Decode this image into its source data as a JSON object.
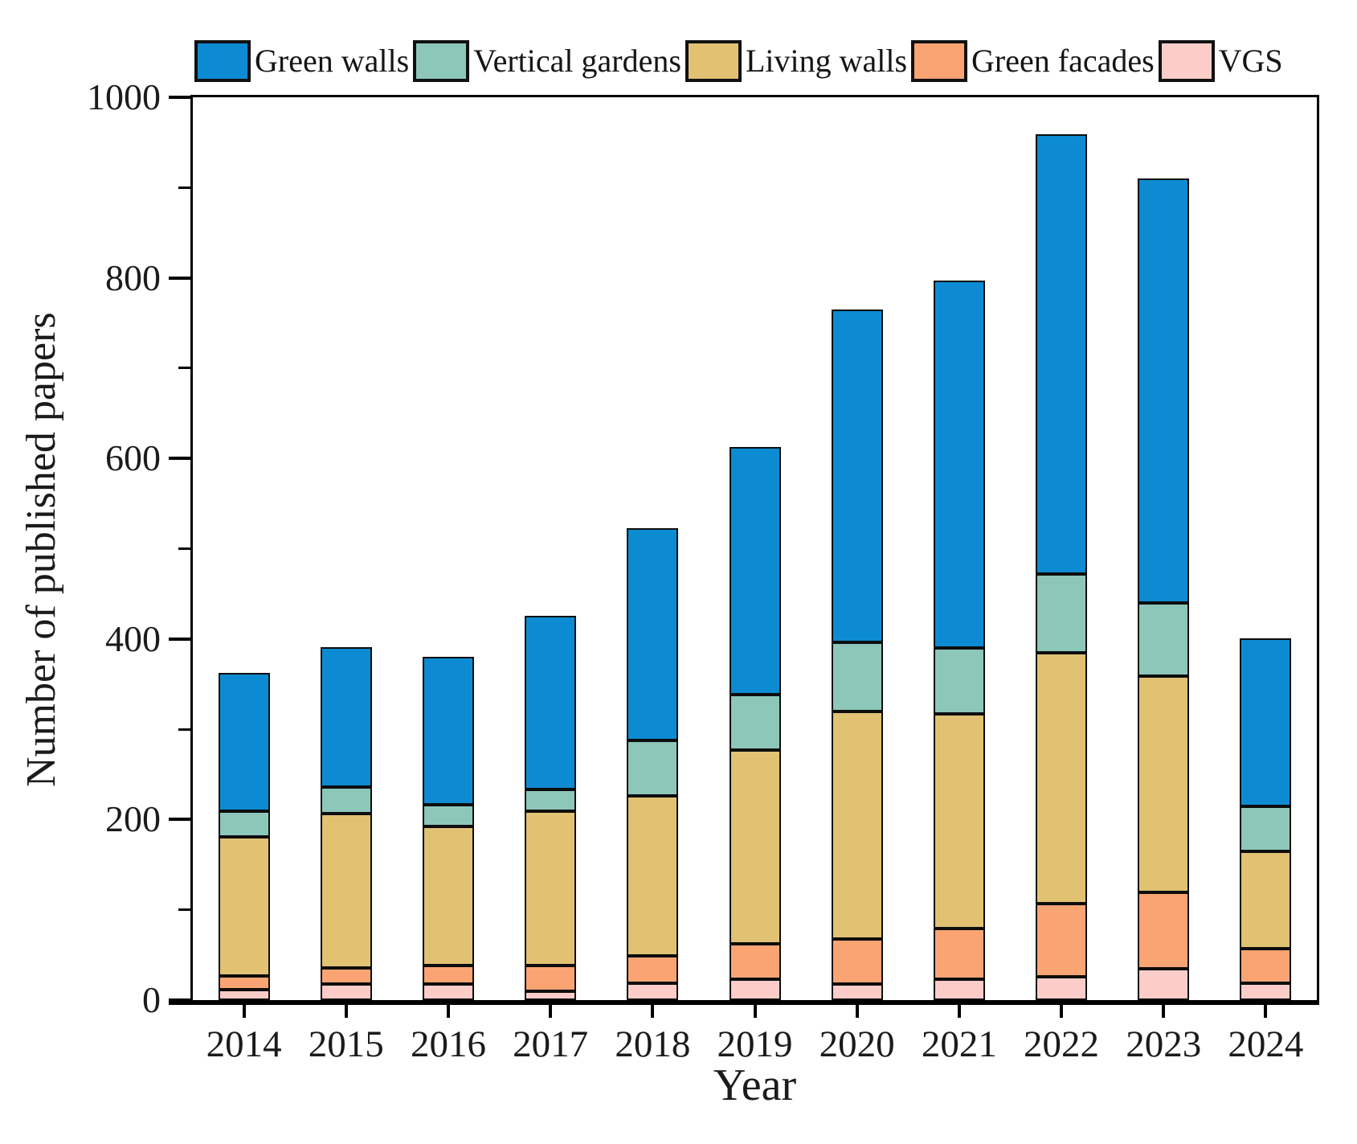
{
  "chart_data": {
    "type": "bar",
    "stacked": true,
    "title": "",
    "xlabel": "Year",
    "ylabel": "Number of published papers",
    "legend_position": "top",
    "grid": false,
    "categories": [
      "2014",
      "2015",
      "2016",
      "2017",
      "2018",
      "2019",
      "2020",
      "2021",
      "2022",
      "2023",
      "2024"
    ],
    "series": [
      {
        "name": "Green walls",
        "color": "#0d8bd2",
        "values": [
          153,
          155,
          164,
          193,
          235,
          275,
          369,
          407,
          487,
          470,
          186
        ]
      },
      {
        "name": "Vertical gardens",
        "color": "#8dc7ba",
        "values": [
          28,
          29,
          24,
          24,
          62,
          61,
          76,
          73,
          87,
          81,
          50
        ]
      },
      {
        "name": "Living walls",
        "color": "#e1c273",
        "values": [
          154,
          171,
          154,
          171,
          177,
          215,
          252,
          238,
          278,
          240,
          108
        ]
      },
      {
        "name": "Green facades",
        "color": "#fba473",
        "values": [
          15,
          18,
          20,
          28,
          30,
          39,
          50,
          56,
          81,
          84,
          38
        ]
      },
      {
        "name": "VGS",
        "color": "#fccdc8",
        "values": [
          12,
          18,
          18,
          10,
          19,
          23,
          18,
          23,
          26,
          35,
          19
        ]
      }
    ],
    "stack_order_bottom_to_top": [
      "VGS",
      "Green facades",
      "Living walls",
      "Vertical gardens",
      "Green walls"
    ],
    "totals": [
      362,
      391,
      380,
      426,
      523,
      613,
      765,
      797,
      959,
      910,
      401
    ],
    "ylim": [
      0,
      1000
    ],
    "ytick_step": 200,
    "yminor_step": 100,
    "ytick_labels": [
      "0",
      "200",
      "400",
      "600",
      "800",
      "1000"
    ],
    "bar_border_color": "#0d0d0d",
    "axis_color": "#000000"
  }
}
